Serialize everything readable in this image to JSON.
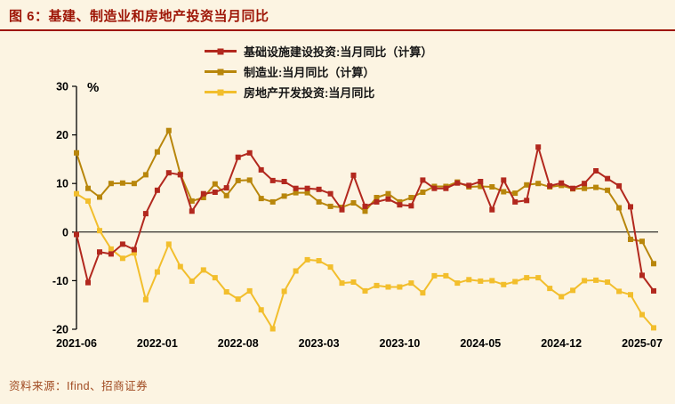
{
  "page": {
    "title": "图 6：基建、制造业和房地产投资当月同比",
    "source": "资料来源：Ifind、招商证券"
  },
  "colors": {
    "background": "#FCF4E2",
    "title_red": "#9E1506",
    "infrastructure": "#B2281E",
    "manufacturing": "#B8860B",
    "real_estate": "#F2BE2C",
    "source_text": "#A04A21"
  },
  "chart_data": {
    "type": "line",
    "title": "基建、制造业和房地产投资当月同比",
    "ylabel": "%",
    "ylim": [
      -20,
      30
    ],
    "yticks": [
      30,
      20,
      10,
      0,
      -10,
      -20
    ],
    "grid": false,
    "zero_line": true,
    "legend_position": "top",
    "x_tick_labels": [
      "2021-06",
      "2022-01",
      "2022-08",
      "2023-03",
      "2023-10",
      "2024-05",
      "2024-12",
      "2025-07"
    ],
    "x_tick_indices": [
      0,
      7,
      14,
      21,
      28,
      35,
      42,
      49
    ],
    "categories": [
      "2021-06",
      "2021-07",
      "2021-08",
      "2021-09",
      "2021-10",
      "2021-11",
      "2021-12",
      "2022-01",
      "2022-02",
      "2022-03",
      "2022-04",
      "2022-05",
      "2022-06",
      "2022-07",
      "2022-08",
      "2022-09",
      "2022-10",
      "2022-11",
      "2022-12",
      "2023-01",
      "2023-02",
      "2023-03",
      "2023-04",
      "2023-05",
      "2023-06",
      "2023-07",
      "2023-08",
      "2023-09",
      "2023-10",
      "2023-11",
      "2023-12",
      "2024-01",
      "2024-02",
      "2024-03",
      "2024-04",
      "2024-05",
      "2024-06",
      "2024-07",
      "2024-08",
      "2024-09",
      "2024-10",
      "2024-11",
      "2024-12",
      "2025-01",
      "2025-02",
      "2025-03",
      "2025-04",
      "2025-05",
      "2025-06",
      "2025-07",
      "2025-08"
    ],
    "series": [
      {
        "name": "基础设施建设投资:当月同比（计算）",
        "slug": "infrastructure",
        "color": "#B2281E",
        "values": [
          -0.5,
          -10.4,
          -4.1,
          -4.5,
          -2.5,
          -3.6,
          3.8,
          8.6,
          12.2,
          11.8,
          4.3,
          7.9,
          8.2,
          9.1,
          15.4,
          16.3,
          12.8,
          10.6,
          10.4,
          9.0,
          9.0,
          8.8,
          7.9,
          4.6,
          11.7,
          5.3,
          6.2,
          6.8,
          5.6,
          5.4,
          10.7,
          9.0,
          9.0,
          10.1,
          9.6,
          10.4,
          4.6,
          10.7,
          6.2,
          6.5,
          17.5,
          9.5,
          10.1,
          9.0,
          10.0,
          12.6,
          11.0,
          9.5,
          5.2,
          -8.9,
          -12.1
        ]
      },
      {
        "name": "制造业:当月同比（计算）",
        "slug": "manufacturing",
        "color": "#B8860B",
        "values": [
          16.3,
          9.0,
          7.2,
          10.0,
          10.1,
          10.0,
          11.8,
          16.5,
          20.9,
          11.9,
          6.4,
          7.1,
          9.9,
          7.5,
          10.6,
          10.7,
          6.9,
          6.2,
          7.4,
          8.1,
          8.1,
          6.2,
          5.3,
          5.1,
          6.0,
          4.3,
          7.1,
          7.9,
          6.2,
          7.1,
          8.2,
          9.4,
          9.4,
          10.3,
          9.3,
          9.4,
          9.3,
          8.3,
          8.0,
          9.7,
          10.0,
          9.3,
          9.6,
          8.9,
          9.0,
          9.2,
          8.6,
          5.0,
          -1.5,
          -1.9,
          -6.5
        ]
      },
      {
        "name": "房地产开发投资:当月同比",
        "slug": "real-estate",
        "color": "#F2BE2C",
        "values": [
          7.9,
          6.4,
          0.3,
          -3.5,
          -5.4,
          -4.3,
          -13.9,
          -8.2,
          -2.5,
          -7.1,
          -10.1,
          -7.8,
          -9.4,
          -12.3,
          -13.8,
          -12.1,
          -16.0,
          -19.9,
          -12.2,
          -8.0,
          -5.7,
          -5.9,
          -7.2,
          -10.5,
          -10.3,
          -12.1,
          -11.0,
          -11.3,
          -11.3,
          -10.5,
          -12.5,
          -9.0,
          -9.0,
          -10.5,
          -9.8,
          -10.1,
          -10.0,
          -10.8,
          -10.2,
          -9.4,
          -9.4,
          -11.6,
          -13.3,
          -12.0,
          -10.0,
          -9.9,
          -10.3,
          -12.2,
          -12.9,
          -17.0,
          -19.7
        ]
      }
    ]
  }
}
